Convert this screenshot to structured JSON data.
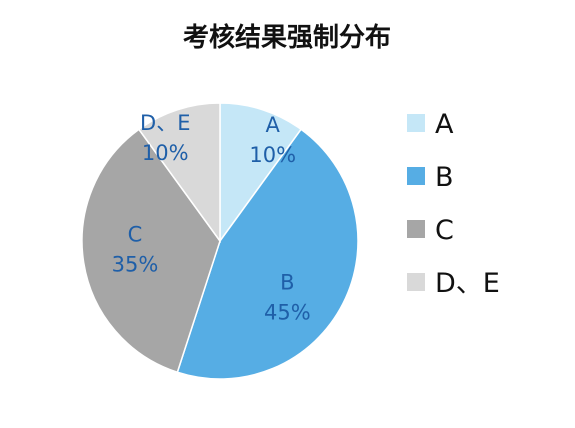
{
  "chart_data": {
    "type": "pie",
    "title": "考核结果强制分布",
    "categories": [
      "A",
      "B",
      "C",
      "D、E"
    ],
    "values": [
      10,
      45,
      35,
      10
    ],
    "slice_labels": [
      {
        "category": "A",
        "percent": "10%"
      },
      {
        "category": "B",
        "percent": "45%"
      },
      {
        "category": "C",
        "percent": "35%"
      },
      {
        "category": "D、E",
        "percent": "10%"
      }
    ],
    "colors": [
      "#c5e7f7",
      "#56ade4",
      "#a6a6a6",
      "#d9d9d9"
    ],
    "label_color": "#1f5fa8",
    "legend": {
      "placement": "right",
      "entries": [
        "A",
        "B",
        "C",
        "D、E"
      ]
    }
  }
}
